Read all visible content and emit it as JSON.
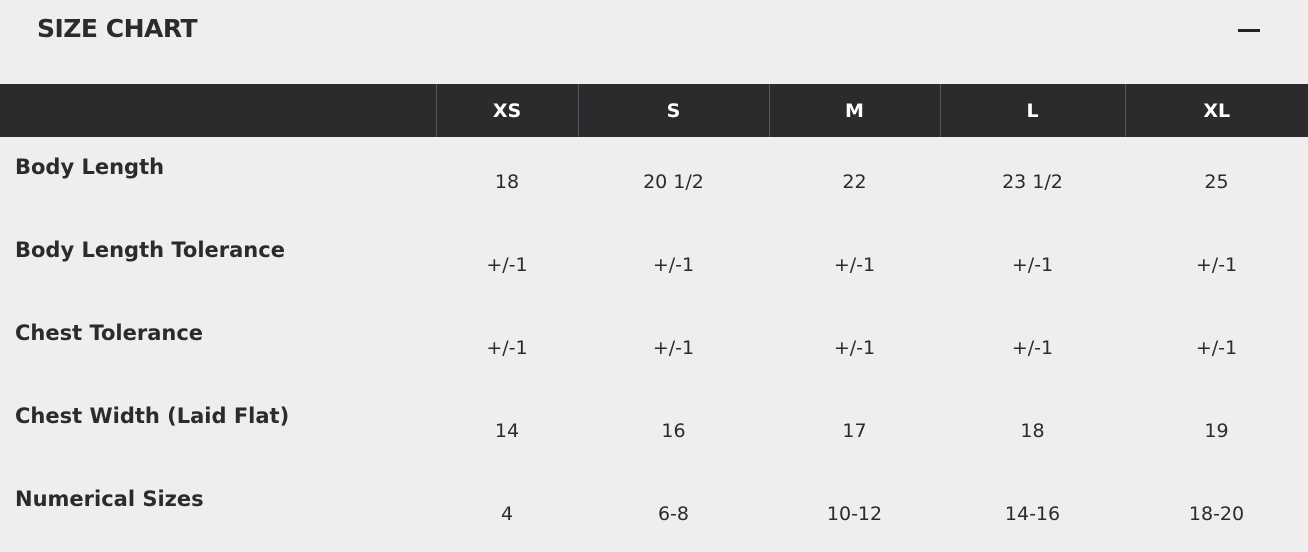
{
  "title": "SIZE CHART",
  "collapse_icon": "minus-icon",
  "table": {
    "headers": [
      "",
      "XS",
      "S",
      "M",
      "L",
      "XL"
    ],
    "rows": [
      {
        "label": "Body Length",
        "values": [
          "18",
          "20 1/2",
          "22",
          "23 1/2",
          "25"
        ]
      },
      {
        "label": "Body Length Tolerance",
        "values": [
          "+/-1",
          "+/-1",
          "+/-1",
          "+/-1",
          "+/-1"
        ]
      },
      {
        "label": "Chest Tolerance",
        "values": [
          "+/-1",
          "+/-1",
          "+/-1",
          "+/-1",
          "+/-1"
        ]
      },
      {
        "label": "Chest Width (Laid Flat)",
        "values": [
          "14",
          "16",
          "17",
          "18",
          "19"
        ]
      },
      {
        "label": "Numerical Sizes",
        "values": [
          "4",
          "6-8",
          "10-12",
          "14-16",
          "18-20"
        ]
      }
    ]
  },
  "colors": {
    "header_bg": "#2b2b2d",
    "page_bg": "#eeeeee"
  }
}
